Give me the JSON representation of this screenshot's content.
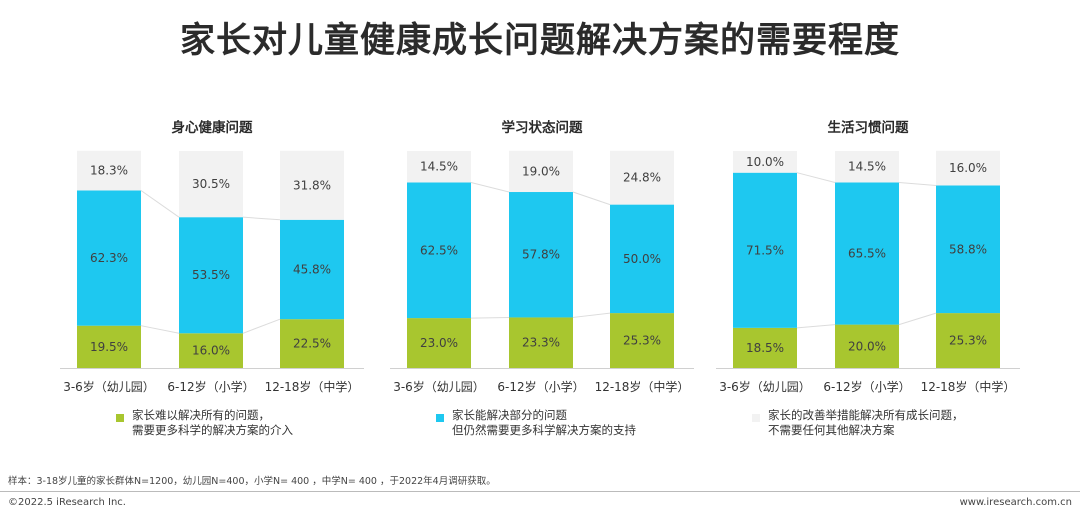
{
  "title": "家长对儿童健康成长问题解决方案的需要程度",
  "chart_data": [
    {
      "type": "bar",
      "stacked": "percent",
      "title": "身心健康问题",
      "categories": [
        "3-6岁（幼儿园）",
        "6-12岁（小学）",
        "12-18岁（中学）"
      ],
      "series": [
        {
          "name": "家长难以解决所有的问题，需要更多科学的解决方案的介入",
          "values": [
            19.5,
            16.0,
            22.5
          ]
        },
        {
          "name": "家长能解决部分的问题但仍然需要更多科学解决方案的支持",
          "values": [
            62.3,
            53.5,
            45.8
          ]
        },
        {
          "name": "家长的改善举措能解决所有成长问题，不需要任何其他解决方案",
          "values": [
            18.3,
            30.5,
            31.8
          ]
        }
      ],
      "labels": [
        [
          "19.5%",
          "16.0%",
          "22.5%"
        ],
        [
          "62.3%",
          "53.5%",
          "45.8%"
        ],
        [
          "18.3%",
          "30.5%",
          "31.8%"
        ]
      ]
    },
    {
      "type": "bar",
      "stacked": "percent",
      "title": "学习状态问题",
      "categories": [
        "3-6岁（幼儿园）",
        "6-12岁（小学）",
        "12-18岁（中学）"
      ],
      "series": [
        {
          "name": "家长难以解决所有的问题，需要更多科学的解决方案的介入",
          "values": [
            23.0,
            23.3,
            25.3
          ]
        },
        {
          "name": "家长能解决部分的问题但仍然需要更多科学解决方案的支持",
          "values": [
            62.5,
            57.8,
            50.0
          ]
        },
        {
          "name": "家长的改善举措能解决所有成长问题，不需要任何其他解决方案",
          "values": [
            14.5,
            19.0,
            24.8
          ]
        }
      ],
      "labels": [
        [
          "23.0%",
          "23.3%",
          "25.3%"
        ],
        [
          "62.5%",
          "57.8%",
          "50.0%"
        ],
        [
          "14.5%",
          "19.0%",
          "24.8%"
        ]
      ]
    },
    {
      "type": "bar",
      "stacked": "percent",
      "title": "生活习惯问题",
      "categories": [
        "3-6岁（幼儿园）",
        "6-12岁（小学）",
        "12-18岁（中学）"
      ],
      "series": [
        {
          "name": "家长难以解决所有的问题，需要更多科学的解决方案的介入",
          "values": [
            18.5,
            20.0,
            25.3
          ]
        },
        {
          "name": "家长能解决部分的问题但仍然需要更多科学解决方案的支持",
          "values": [
            71.5,
            65.5,
            58.8
          ]
        },
        {
          "name": "家长的改善举措能解决所有成长问题，不需要任何其他解决方案",
          "values": [
            10.0,
            14.5,
            16.0
          ]
        }
      ],
      "labels": [
        [
          "18.5%",
          "20.0%",
          "25.3%"
        ],
        [
          "71.5%",
          "65.5%",
          "58.8%"
        ],
        [
          "10.0%",
          "14.5%",
          "16.0%"
        ]
      ]
    }
  ],
  "colors": {
    "green": "#a8c62f",
    "blue": "#1ec8f0",
    "gray": "#f2f2f2",
    "label": "#404040"
  },
  "legend": [
    {
      "line1": "家长难以解决所有的问题，",
      "line2": "需要更多科学的解决方案的介入",
      "color": "#a8c62f"
    },
    {
      "line1": "家长能解决部分的问题",
      "line2": "但仍然需要更多科学解决方案的支持",
      "color": "#1ec8f0"
    },
    {
      "line1": "家长的改善举措能解决所有成长问题，",
      "line2": "不需要任何其他解决方案",
      "color": "#f2f2f2"
    }
  ],
  "note": "样本：3-18岁儿童的家长群体N=1200，幼儿园N=400，小学N= 400 ，中学N= 400 ，于2022年4月调研获取。",
  "footer": {
    "left": "©2022.5 iResearch Inc.",
    "right": "www.iresearch.com.cn"
  }
}
